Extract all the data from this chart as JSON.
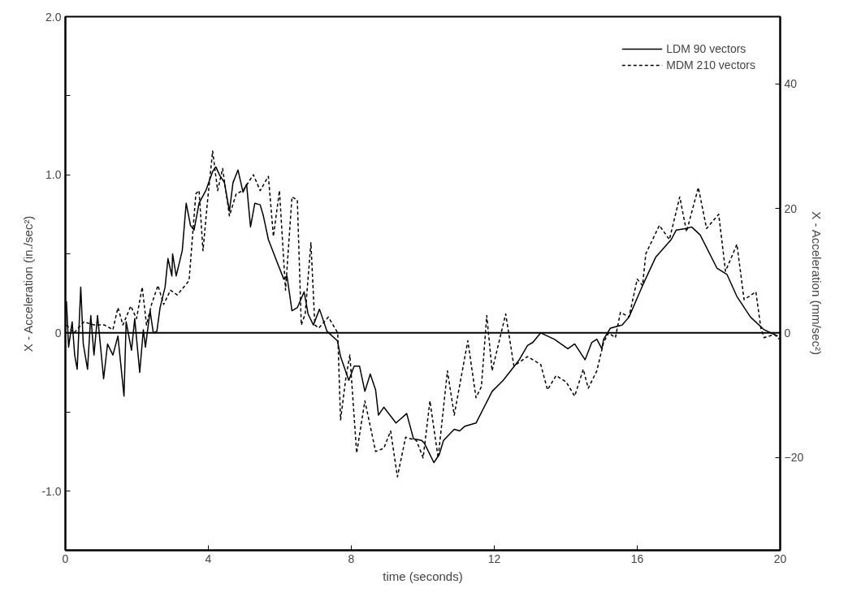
{
  "chart_data": {
    "type": "line",
    "xlabel": "time (seconds)",
    "ylabel": "X - Acceleration (in./sec²)",
    "y2label": "X - Acceleration (mm/sec²)",
    "xlim": [
      0,
      20
    ],
    "xticks": [
      0,
      4,
      8,
      12,
      16,
      20
    ],
    "ylim": [
      -1.375,
      2.0
    ],
    "yticks": [
      {
        "value": -1.0,
        "label": "-1.0"
      },
      {
        "value": -0.5,
        "label": null
      },
      0,
      {
        "value": 0.5,
        "label": null
      },
      {
        "value": 1.0,
        "label": "1.0"
      },
      {
        "value": 1.5,
        "label": null
      },
      {
        "value": 2.0,
        "label": "2.0"
      }
    ],
    "y2lim": [
      -34.9,
      50.8
    ],
    "y2ticks": [
      -20,
      0,
      20,
      40
    ],
    "legend": "top right",
    "grid": false,
    "ref_lines": [
      {
        "axis": "y",
        "value": 0,
        "label": null,
        "color": "#000000",
        "line_style": "solid"
      }
    ],
    "series": [
      {
        "name": "LDM 90 vectors",
        "color": "#000000",
        "line_style": "solid",
        "x": [
          0.03,
          0.09,
          0.19,
          0.26,
          0.33,
          0.43,
          0.5,
          0.62,
          0.71,
          0.8,
          0.9,
          1.07,
          1.18,
          1.33,
          1.47,
          1.64,
          1.7,
          1.85,
          1.94,
          2.08,
          2.18,
          2.24,
          2.37,
          2.46,
          2.56,
          2.65,
          2.79,
          2.87,
          2.98,
          3.0,
          3.1,
          3.27,
          3.38,
          3.5,
          3.6,
          3.74,
          3.93,
          4.12,
          4.21,
          4.31,
          4.45,
          4.59,
          4.69,
          4.83,
          4.97,
          5.07,
          5.18,
          5.3,
          5.45,
          5.54,
          5.68,
          5.92,
          6.11,
          6.2,
          6.34,
          6.49,
          6.68,
          6.79,
          6.94,
          7.11,
          7.32,
          7.61,
          7.7,
          7.93,
          8.08,
          8.23,
          8.38,
          8.53,
          8.68,
          8.76,
          8.91,
          9.25,
          9.55,
          9.74,
          9.97,
          10.05,
          10.31,
          10.46,
          10.58,
          10.88,
          11.03,
          11.18,
          11.49,
          11.94,
          12.25,
          12.7,
          12.93,
          13.08,
          13.3,
          13.68,
          14.06,
          14.25,
          14.54,
          14.73,
          14.87,
          15.01,
          15.06,
          15.25,
          15.58,
          15.77,
          16.15,
          16.52,
          16.95,
          17.09,
          17.38,
          17.52,
          17.76,
          18.23,
          18.51,
          18.79,
          19.17,
          19.55,
          19.93
        ],
        "values": [
          0.2,
          -0.09,
          0.07,
          -0.14,
          -0.23,
          0.29,
          -0.07,
          -0.23,
          0.11,
          -0.14,
          0.11,
          -0.29,
          -0.07,
          -0.14,
          -0.02,
          -0.4,
          0.07,
          -0.11,
          0.09,
          -0.25,
          0.02,
          -0.09,
          0.14,
          0.0,
          0.01,
          0.16,
          0.29,
          0.47,
          0.36,
          0.5,
          0.36,
          0.52,
          0.82,
          0.68,
          0.65,
          0.82,
          0.9,
          1.02,
          1.05,
          1.0,
          0.95,
          0.77,
          0.95,
          1.03,
          0.89,
          0.94,
          0.67,
          0.82,
          0.81,
          0.74,
          0.59,
          0.45,
          0.34,
          0.36,
          0.14,
          0.16,
          0.26,
          0.12,
          0.05,
          0.15,
          0.01,
          -0.05,
          -0.15,
          -0.3,
          -0.21,
          -0.21,
          -0.37,
          -0.26,
          -0.36,
          -0.52,
          -0.47,
          -0.57,
          -0.51,
          -0.67,
          -0.68,
          -0.7,
          -0.82,
          -0.77,
          -0.68,
          -0.61,
          -0.62,
          -0.59,
          -0.57,
          -0.37,
          -0.3,
          -0.17,
          -0.08,
          -0.06,
          0.0,
          -0.04,
          -0.1,
          -0.07,
          -0.17,
          -0.06,
          -0.04,
          -0.1,
          -0.04,
          0.03,
          0.05,
          0.1,
          0.3,
          0.48,
          0.59,
          0.65,
          0.66,
          0.67,
          0.62,
          0.41,
          0.37,
          0.23,
          0.1,
          0.02,
          -0.02
        ]
      },
      {
        "name": "MDM 210 vectors",
        "color": "#000000",
        "line_style": "dashed",
        "x": [
          0.03,
          0.24,
          0.52,
          0.8,
          1.09,
          1.33,
          1.47,
          1.61,
          1.83,
          1.99,
          2.15,
          2.27,
          2.41,
          2.59,
          2.75,
          2.94,
          3.13,
          3.46,
          3.65,
          3.74,
          3.85,
          3.98,
          4.12,
          4.26,
          4.4,
          4.59,
          4.78,
          4.97,
          5.26,
          5.45,
          5.68,
          5.82,
          5.99,
          6.16,
          6.34,
          6.49,
          6.6,
          6.71,
          6.87,
          6.98,
          7.09,
          7.36,
          7.62,
          7.7,
          7.85,
          7.96,
          8.15,
          8.38,
          8.68,
          8.91,
          9.1,
          9.29,
          9.52,
          9.82,
          10.01,
          10.2,
          10.43,
          10.69,
          10.88,
          11.26,
          11.49,
          11.64,
          11.79,
          11.94,
          12.32,
          12.55,
          12.93,
          13.3,
          13.49,
          13.73,
          14.01,
          14.25,
          14.49,
          14.63,
          14.87,
          15.06,
          15.2,
          15.39,
          15.53,
          15.77,
          16.0,
          16.15,
          16.24,
          16.62,
          16.9,
          17.19,
          17.38,
          17.71,
          17.94,
          18.28,
          18.47,
          18.79,
          18.99,
          19.32,
          19.46,
          19.55,
          19.84,
          19.98
        ],
        "values": [
          0.05,
          0.0,
          0.07,
          0.05,
          0.05,
          0.02,
          0.16,
          0.05,
          0.17,
          0.09,
          0.29,
          0.05,
          0.18,
          0.3,
          0.18,
          0.27,
          0.24,
          0.33,
          0.88,
          0.9,
          0.52,
          0.84,
          1.15,
          0.9,
          1.04,
          0.74,
          0.88,
          0.9,
          1.0,
          0.9,
          0.99,
          0.61,
          0.9,
          0.27,
          0.86,
          0.84,
          0.05,
          0.12,
          0.57,
          0.05,
          0.03,
          0.1,
          0.0,
          -0.55,
          -0.28,
          -0.14,
          -0.76,
          -0.43,
          -0.75,
          -0.73,
          -0.62,
          -0.91,
          -0.66,
          -0.68,
          -0.79,
          -0.43,
          -0.79,
          -0.24,
          -0.52,
          -0.05,
          -0.41,
          -0.34,
          0.11,
          -0.24,
          0.12,
          -0.21,
          -0.15,
          -0.2,
          -0.36,
          -0.27,
          -0.31,
          -0.4,
          -0.23,
          -0.35,
          -0.24,
          -0.06,
          0.0,
          -0.03,
          0.13,
          0.1,
          0.34,
          0.3,
          0.5,
          0.68,
          0.59,
          0.86,
          0.64,
          0.92,
          0.66,
          0.75,
          0.39,
          0.56,
          0.21,
          0.26,
          0.03,
          -0.03,
          -0.01,
          -0.04
        ]
      }
    ]
  }
}
